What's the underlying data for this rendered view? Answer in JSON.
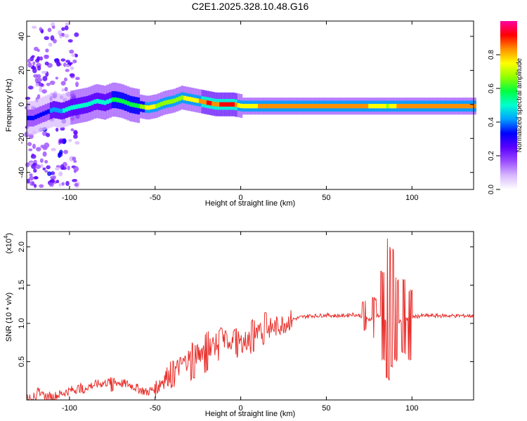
{
  "title": "C2E1.2025.328.10.48.G16",
  "chart_data": [
    {
      "type": "heatmap",
      "xlabel": "Height of straight line (km)",
      "ylabel": "Frequency (Hz)",
      "xlim": [
        -125,
        136
      ],
      "ylim": [
        -50,
        49
      ],
      "x_ticks": [
        -100,
        -50,
        0,
        50,
        100
      ],
      "y_ticks": [
        -40,
        -20,
        0,
        20,
        40
      ],
      "colorbar": {
        "label": "Normalized spectral amplitude",
        "range": [
          0,
          1
        ],
        "ticks": [
          0.0,
          0.2,
          0.4,
          0.6,
          0.8
        ],
        "tick_labels": [
          "0.0",
          "0.2",
          "0.4",
          "0.6",
          "0.8"
        ],
        "colors": [
          "#ffffff",
          "#d8b8ff",
          "#9b4dff",
          "#5a00ff",
          "#0000ff",
          "#00a0ff",
          "#00ffd0",
          "#00ff40",
          "#90ff00",
          "#ffff00",
          "#ff9000",
          "#ff0000",
          "#ff00a0"
        ]
      },
      "ridge": {
        "x": [
          -122,
          -115,
          -110,
          -105,
          -100,
          -95,
          -90,
          -85,
          -80,
          -75,
          -70,
          -65,
          -60,
          -55,
          -50,
          -45,
          -40,
          -35,
          -30,
          -25,
          -20,
          -15,
          -10,
          -5,
          0,
          5,
          10,
          20,
          30,
          40,
          50,
          60,
          70,
          80,
          85,
          90,
          95,
          100,
          110,
          120,
          136
        ],
        "y": [
          -8,
          -5,
          -3,
          -4,
          -2,
          -1,
          0,
          2,
          1,
          3,
          2,
          0,
          -1,
          -2,
          -1,
          1,
          2,
          4,
          3,
          2,
          1,
          0,
          0,
          0,
          -1,
          -1,
          -1,
          -1,
          -1,
          -1,
          -1,
          -1,
          -1,
          -1,
          -1,
          -1,
          -1,
          -1,
          -1,
          -1,
          -1
        ],
        "amplitude": [
          0.3,
          0.35,
          0.4,
          0.45,
          0.5,
          0.5,
          0.5,
          0.5,
          0.5,
          0.55,
          0.55,
          0.6,
          0.6,
          0.75,
          0.7,
          0.7,
          0.7,
          0.7,
          0.75,
          0.8,
          0.9,
          0.85,
          0.9,
          0.9,
          0.7,
          0.75,
          0.8,
          0.82,
          0.8,
          0.8,
          0.8,
          0.8,
          0.8,
          0.78,
          0.7,
          0.8,
          0.8,
          0.8,
          0.8,
          0.8,
          0.8
        ]
      }
    },
    {
      "type": "line",
      "xlabel": "Height of straight line (km)",
      "ylabel": "SNR (10 * v/v)",
      "multiplier_label": "(x10",
      "multiplier_exp": "4",
      "xlim": [
        -125,
        136
      ],
      "ylim": [
        0,
        2.2
      ],
      "x_ticks": [
        -100,
        -50,
        0,
        50,
        100
      ],
      "y_ticks": [
        0.5,
        1.0,
        1.5,
        2.0
      ],
      "y_tick_labels": [
        "0.5",
        "1.0",
        "1.5",
        "2.0"
      ],
      "series": [
        {
          "color": "#e8302c",
          "x": [
            -125,
            -120,
            -115,
            -110,
            -105,
            -100,
            -95,
            -90,
            -85,
            -80,
            -75,
            -70,
            -65,
            -60,
            -55,
            -50,
            -45,
            -40,
            -35,
            -30,
            -25,
            -20,
            -15,
            -10,
            -5,
            0,
            5,
            10,
            15,
            20,
            25,
            30,
            35,
            40,
            45,
            50,
            55,
            60,
            65,
            70,
            75,
            80,
            85,
            90,
            95,
            100,
            105,
            110,
            115,
            120,
            125,
            130,
            136
          ],
          "values": [
            0.02,
            0.04,
            0.05,
            0.04,
            0.08,
            0.12,
            0.15,
            0.17,
            0.2,
            0.22,
            0.24,
            0.22,
            0.2,
            0.15,
            0.1,
            0.15,
            0.28,
            0.35,
            0.45,
            0.55,
            0.6,
            0.7,
            0.72,
            0.78,
            0.78,
            0.75,
            0.78,
            0.85,
            0.92,
            0.95,
            1.0,
            1.05,
            1.08,
            1.1,
            1.1,
            1.11,
            1.1,
            1.1,
            1.12,
            1.1,
            1.05,
            1.1,
            1.05,
            1.0,
            1.05,
            1.08,
            1.1,
            1.1,
            1.1,
            1.1,
            1.1,
            1.1,
            1.1
          ]
        }
      ],
      "bursts": [
        {
          "x": -118,
          "lo": 0.05,
          "hi": 0.16
        },
        {
          "x": -92,
          "lo": 0.08,
          "hi": 0.22
        },
        {
          "x": -75,
          "lo": 0.1,
          "hi": 0.32
        },
        {
          "x": -40,
          "lo": 0.15,
          "hi": 0.55
        },
        {
          "x": -28,
          "lo": 0.25,
          "hi": 0.75
        },
        {
          "x": -20,
          "lo": 0.35,
          "hi": 0.9
        },
        {
          "x": -12,
          "lo": 0.5,
          "hi": 0.95
        },
        {
          "x": -3,
          "lo": 0.55,
          "hi": 0.95
        },
        {
          "x": 7,
          "lo": 0.6,
          "hi": 1.05
        },
        {
          "x": 14,
          "lo": 0.7,
          "hi": 1.15
        },
        {
          "x": 72,
          "lo": 0.9,
          "hi": 1.3
        },
        {
          "x": 78,
          "lo": 0.8,
          "hi": 1.35
        },
        {
          "x": 83,
          "lo": 0.5,
          "hi": 1.7
        },
        {
          "x": 86,
          "lo": 0.25,
          "hi": 2.15
        },
        {
          "x": 88,
          "lo": 0.4,
          "hi": 2.0
        },
        {
          "x": 91,
          "lo": 0.5,
          "hi": 1.6
        },
        {
          "x": 95,
          "lo": 0.6,
          "hi": 1.6
        },
        {
          "x": 99,
          "lo": 0.5,
          "hi": 1.45
        }
      ]
    }
  ]
}
